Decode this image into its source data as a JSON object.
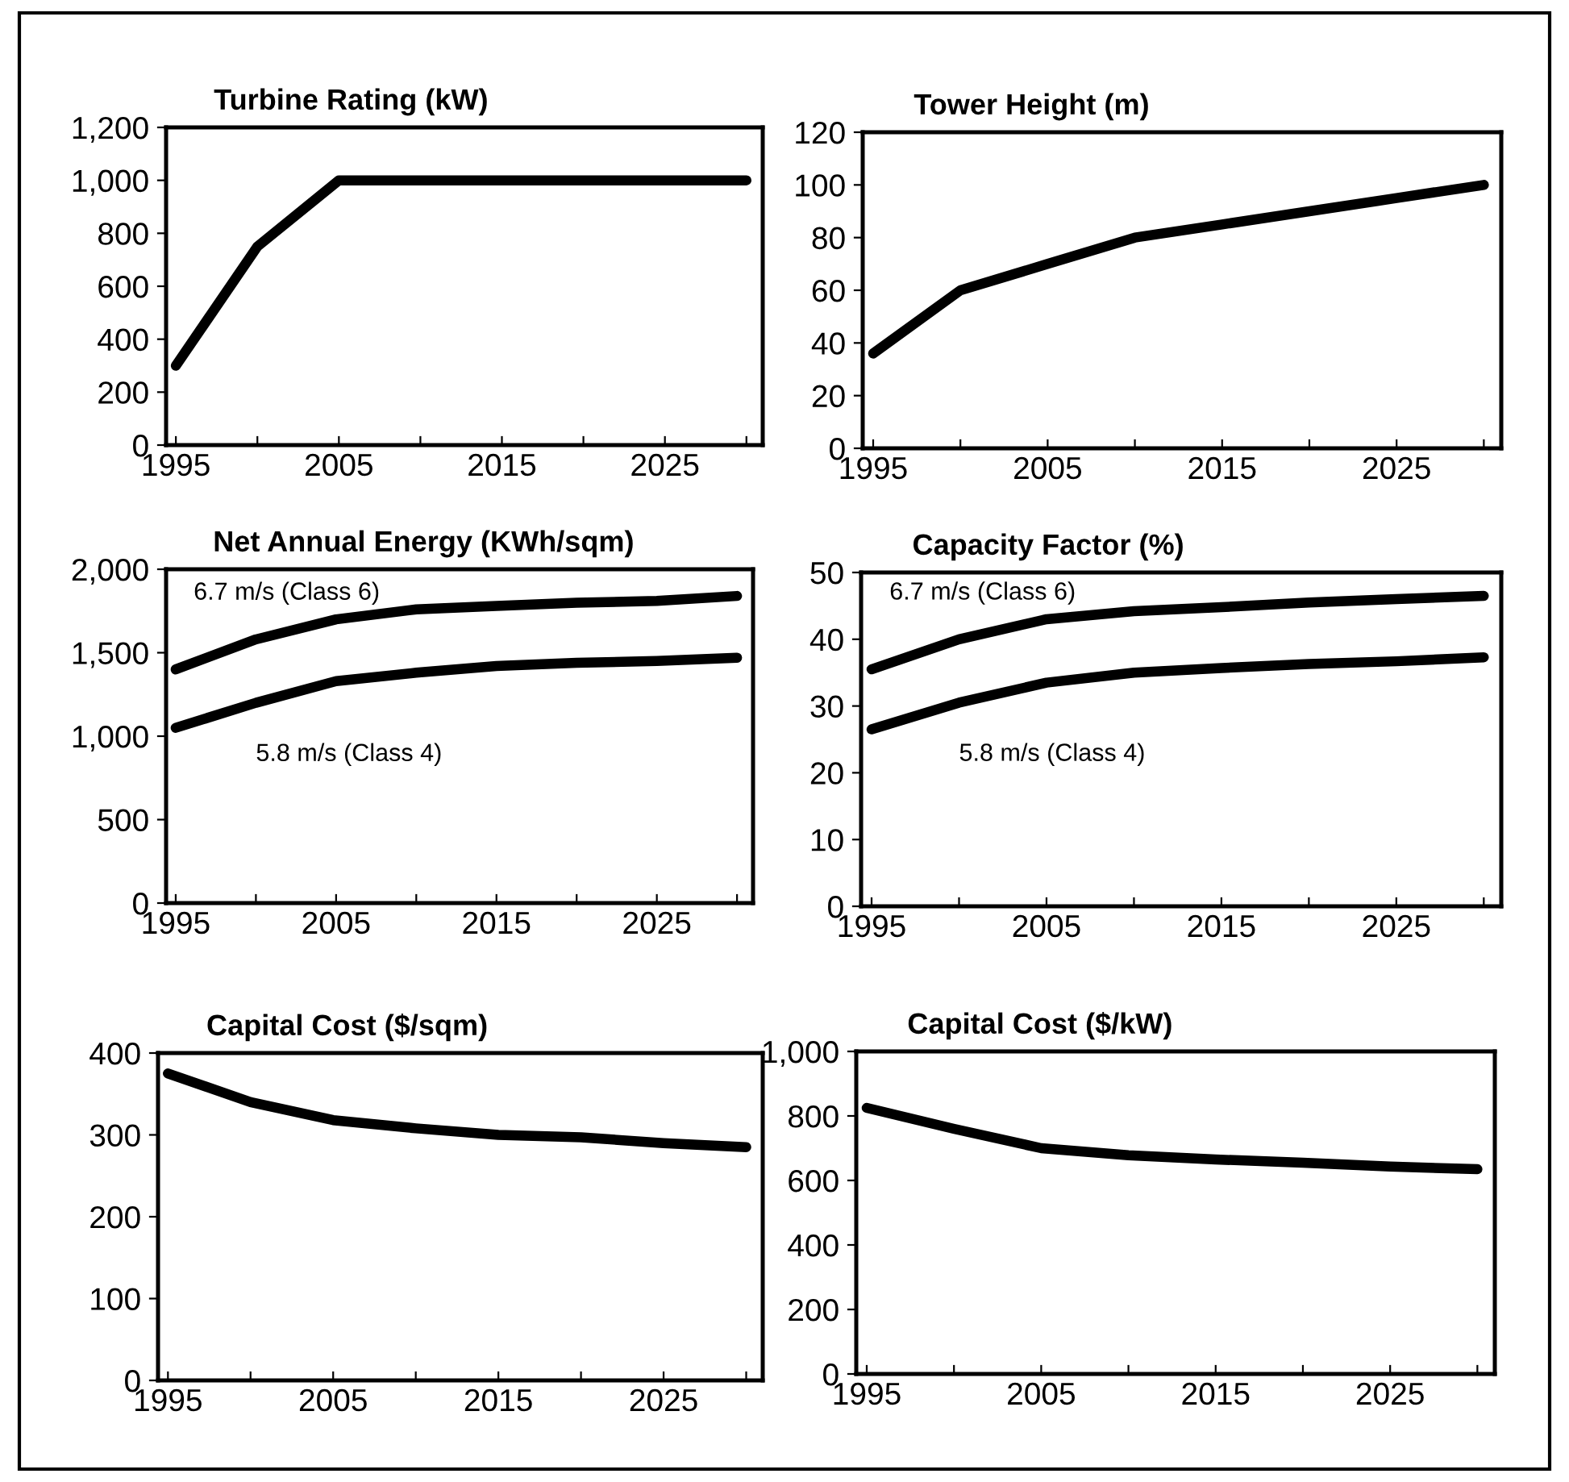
{
  "chart_data": [
    {
      "type": "line",
      "title": "Turbine Rating (kW)",
      "x": [
        1995,
        2000,
        2005,
        2010,
        2015,
        2020,
        2025,
        2030
      ],
      "series": [
        {
          "color": "#000000",
          "values": [
            300,
            750,
            1000,
            1000,
            1000,
            1000,
            1000,
            1000
          ]
        }
      ],
      "xlim": [
        1994.4,
        2031
      ],
      "xticks": [
        1995,
        {
          "value": 2000,
          "label": null
        },
        2005,
        {
          "value": 2010,
          "label": null
        },
        2015,
        {
          "value": 2020,
          "label": null
        },
        2025,
        {
          "value": 2030,
          "label": null
        }
      ],
      "ylim": [
        0,
        1200
      ],
      "yticks": [
        0,
        200,
        400,
        600,
        800,
        {
          "value": 1000,
          "label": "1,000"
        },
        {
          "value": 1200,
          "label": "1,200"
        }
      ],
      "grid": false,
      "legend": false,
      "marker": "none",
      "line_style": "solid"
    },
    {
      "type": "line",
      "title": "Tower Height (m)",
      "x": [
        1995,
        2000,
        2005,
        2010,
        2015,
        2020,
        2025,
        2030
      ],
      "series": [
        {
          "color": "#000000",
          "values": [
            36,
            60,
            70,
            80,
            85,
            90,
            95,
            100
          ]
        }
      ],
      "xlim": [
        1994.4,
        2031
      ],
      "xticks": [
        1995,
        {
          "value": 2000,
          "label": null
        },
        2005,
        {
          "value": 2010,
          "label": null
        },
        2015,
        {
          "value": 2020,
          "label": null
        },
        2025,
        {
          "value": 2030,
          "label": null
        }
      ],
      "ylim": [
        0,
        120
      ],
      "yticks": [
        0,
        20,
        40,
        60,
        80,
        100,
        120
      ],
      "grid": false,
      "legend": false,
      "marker": "none",
      "line_style": "solid"
    },
    {
      "type": "line",
      "title": "Net Annual Energy (KWh/sqm)",
      "x": [
        1995,
        2000,
        2005,
        2010,
        2015,
        2020,
        2025,
        2030
      ],
      "series": [
        {
          "name": "6.7 m/s (Class 6)",
          "color": "#000000",
          "values": [
            1400,
            1580,
            1700,
            1760,
            1780,
            1800,
            1810,
            1840
          ]
        },
        {
          "name": "5.8 m/s (Class 4)",
          "color": "#000000",
          "values": [
            1050,
            1200,
            1330,
            1380,
            1420,
            1440,
            1450,
            1470
          ]
        }
      ],
      "xlim": [
        1994.4,
        2031
      ],
      "xticks": [
        1995,
        {
          "value": 2000,
          "label": null
        },
        2005,
        {
          "value": 2010,
          "label": null
        },
        2015,
        {
          "value": 2020,
          "label": null
        },
        2025,
        {
          "value": 2030,
          "label": null
        }
      ],
      "ylim": [
        0,
        2000
      ],
      "yticks": [
        0,
        500,
        {
          "value": 1000,
          "label": "1,000"
        },
        {
          "value": 1500,
          "label": "1,500"
        },
        {
          "value": 2000,
          "label": "2,000"
        }
      ],
      "grid": false,
      "legend": false,
      "marker": "none",
      "line_style": "solid"
    },
    {
      "type": "line",
      "title": "Capacity Factor (%)",
      "x": [
        1995,
        2000,
        2005,
        2010,
        2015,
        2020,
        2025,
        2030
      ],
      "series": [
        {
          "name": "6.7 m/s (Class 6)",
          "color": "#000000",
          "values": [
            35.5,
            40,
            43,
            44.2,
            44.8,
            45.5,
            46,
            46.5
          ]
        },
        {
          "name": "5.8 m/s (Class 4)",
          "color": "#000000",
          "values": [
            26.5,
            30.5,
            33.5,
            35,
            35.7,
            36.3,
            36.7,
            37.3
          ]
        }
      ],
      "xlim": [
        1994.4,
        2031
      ],
      "xticks": [
        1995,
        {
          "value": 2000,
          "label": null
        },
        2005,
        {
          "value": 2010,
          "label": null
        },
        2015,
        {
          "value": 2020,
          "label": null
        },
        2025,
        {
          "value": 2030,
          "label": null
        }
      ],
      "ylim": [
        0,
        50
      ],
      "yticks": [
        0,
        10,
        20,
        30,
        40,
        50
      ],
      "grid": false,
      "legend": false,
      "marker": "none",
      "line_style": "solid"
    },
    {
      "type": "line",
      "title": "Capital Cost ($/sqm)",
      "x": [
        1995,
        2000,
        2005,
        2010,
        2015,
        2020,
        2025,
        2030
      ],
      "series": [
        {
          "color": "#000000",
          "values": [
            375,
            340,
            318,
            308,
            300,
            297,
            290,
            285
          ]
        }
      ],
      "xlim": [
        1994.4,
        2031
      ],
      "xticks": [
        1995,
        {
          "value": 2000,
          "label": null
        },
        2005,
        {
          "value": 2010,
          "label": null
        },
        2015,
        {
          "value": 2020,
          "label": null
        },
        2025,
        {
          "value": 2030,
          "label": null
        }
      ],
      "ylim": [
        0,
        400
      ],
      "yticks": [
        0,
        100,
        200,
        300,
        400
      ],
      "grid": false,
      "legend": false,
      "marker": "none",
      "line_style": "solid"
    },
    {
      "type": "line",
      "title": "Capital Cost ($/kW)",
      "x": [
        1995,
        2000,
        2005,
        2010,
        2015,
        2020,
        2025,
        2030
      ],
      "series": [
        {
          "color": "#000000",
          "values": [
            825,
            760,
            700,
            678,
            665,
            655,
            643,
            635
          ]
        }
      ],
      "xlim": [
        1994.4,
        2031
      ],
      "xticks": [
        1995,
        {
          "value": 2000,
          "label": null
        },
        2005,
        {
          "value": 2010,
          "label": null
        },
        2015,
        {
          "value": 2020,
          "label": null
        },
        2025,
        {
          "value": 2030,
          "label": null
        }
      ],
      "ylim": [
        0,
        1000
      ],
      "yticks": [
        0,
        200,
        400,
        600,
        800,
        {
          "value": 1000,
          "label": "1,000"
        }
      ],
      "grid": false,
      "legend": false,
      "marker": "none",
      "line_style": "solid"
    }
  ]
}
